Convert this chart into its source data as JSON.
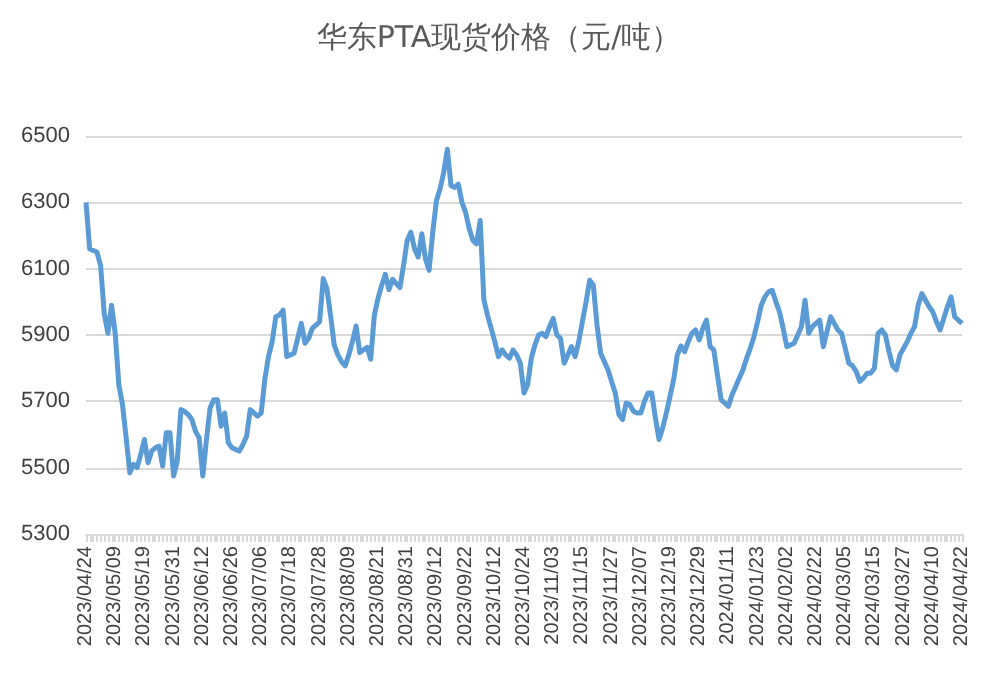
{
  "chart_data": {
    "type": "line",
    "title": "华东PTA现货价格（元/吨）",
    "categories": [
      "2023/04/24",
      null,
      null,
      null,
      null,
      null,
      null,
      null,
      "2023/05/09",
      null,
      null,
      null,
      null,
      null,
      null,
      null,
      "2023/05/19",
      null,
      null,
      null,
      null,
      null,
      null,
      null,
      "2023/05/31",
      null,
      null,
      null,
      null,
      null,
      null,
      null,
      "2023/06/12",
      null,
      null,
      null,
      null,
      null,
      null,
      null,
      "2023/06/26",
      null,
      null,
      null,
      null,
      null,
      null,
      null,
      "2023/07/06",
      null,
      null,
      null,
      null,
      null,
      null,
      null,
      "2023/07/18",
      null,
      null,
      null,
      null,
      null,
      null,
      null,
      "2023/07/28",
      null,
      null,
      null,
      null,
      null,
      null,
      null,
      "2023/08/09",
      null,
      null,
      null,
      null,
      null,
      null,
      null,
      "2023/08/21",
      null,
      null,
      null,
      null,
      null,
      null,
      null,
      "2023/08/31",
      null,
      null,
      null,
      null,
      null,
      null,
      null,
      "2023/09/12",
      null,
      null,
      null,
      null,
      null,
      null,
      null,
      "2023/09/22",
      null,
      null,
      null,
      null,
      null,
      null,
      null,
      "2023/10/12",
      null,
      null,
      null,
      null,
      null,
      null,
      null,
      "2023/10/24",
      null,
      null,
      null,
      null,
      null,
      null,
      null,
      "2023/11/03",
      null,
      null,
      null,
      null,
      null,
      null,
      null,
      "2023/11/15",
      null,
      null,
      null,
      null,
      null,
      null,
      null,
      "2023/11/27",
      null,
      null,
      null,
      null,
      null,
      null,
      null,
      "2023/12/07",
      null,
      null,
      null,
      null,
      null,
      null,
      null,
      "2023/12/19",
      null,
      null,
      null,
      null,
      null,
      null,
      null,
      "2023/12/29",
      null,
      null,
      null,
      null,
      null,
      null,
      null,
      "2024/01/11",
      null,
      null,
      null,
      null,
      null,
      null,
      null,
      "2024/01/23",
      null,
      null,
      null,
      null,
      null,
      null,
      null,
      "2024/02/02",
      null,
      null,
      null,
      null,
      null,
      null,
      null,
      "2024/02/22",
      null,
      null,
      null,
      null,
      null,
      null,
      null,
      "2024/03/05",
      null,
      null,
      null,
      null,
      null,
      null,
      null,
      "2024/03/15",
      null,
      null,
      null,
      null,
      null,
      null,
      null,
      "2024/03/27",
      null,
      null,
      null,
      null,
      null,
      null,
      null,
      "2024/04/10",
      null,
      null,
      null,
      null,
      null,
      null,
      null,
      "2024/04/22"
    ],
    "values": [
      6300,
      6160,
      6155,
      6150,
      6110,
      5965,
      5905,
      5990,
      5905,
      5750,
      5690,
      5590,
      5485,
      5510,
      5500,
      5540,
      5585,
      5515,
      5550,
      5560,
      5565,
      5505,
      5605,
      5605,
      5475,
      5520,
      5675,
      5670,
      5660,
      5645,
      5610,
      5590,
      5475,
      5585,
      5680,
      5705,
      5705,
      5625,
      5665,
      5575,
      5560,
      5555,
      5550,
      5570,
      5595,
      5675,
      5665,
      5655,
      5665,
      5767,
      5835,
      5880,
      5955,
      5960,
      5975,
      5835,
      5840,
      5845,
      5890,
      5935,
      5875,
      5890,
      5920,
      5930,
      5940,
      6070,
      6040,
      5960,
      5870,
      5840,
      5820,
      5807,
      5840,
      5880,
      5927,
      5847,
      5855,
      5863,
      5827,
      5960,
      6010,
      6050,
      6083,
      6037,
      6068,
      6055,
      6043,
      6110,
      6185,
      6210,
      6160,
      6135,
      6205,
      6130,
      6095,
      6210,
      6305,
      6340,
      6390,
      6460,
      6350,
      6345,
      6355,
      6300,
      6270,
      6220,
      6185,
      6175,
      6245,
      6007,
      5960,
      5920,
      5880,
      5835,
      5855,
      5840,
      5830,
      5855,
      5840,
      5815,
      5725,
      5750,
      5830,
      5870,
      5900,
      5905,
      5895,
      5925,
      5950,
      5900,
      5890,
      5815,
      5840,
      5865,
      5835,
      5880,
      5940,
      6000,
      6065,
      6050,
      5930,
      5845,
      5820,
      5795,
      5760,
      5725,
      5660,
      5645,
      5695,
      5690,
      5670,
      5665,
      5665,
      5700,
      5725,
      5725,
      5650,
      5585,
      5620,
      5665,
      5715,
      5765,
      5840,
      5867,
      5850,
      5880,
      5905,
      5915,
      5885,
      5920,
      5945,
      5865,
      5855,
      5780,
      5705,
      5695,
      5685,
      5720,
      5745,
      5770,
      5795,
      5830,
      5860,
      5895,
      5940,
      5990,
      6015,
      6030,
      6035,
      6000,
      5970,
      5920,
      5865,
      5870,
      5875,
      5900,
      5925,
      6005,
      5905,
      5925,
      5935,
      5945,
      5865,
      5910,
      5955,
      5935,
      5915,
      5905,
      5860,
      5815,
      5807,
      5790,
      5760,
      5770,
      5785,
      5785,
      5800,
      5905,
      5915,
      5900,
      5850,
      5807,
      5795,
      5840,
      5860,
      5880,
      5905,
      5925,
      5990,
      6025,
      6005,
      5985,
      5970,
      5940,
      5915,
      5950,
      5985,
      6015,
      5955,
      5945,
      5935
    ],
    "color": "#5b9bd5",
    "ylim": [
      5300,
      6500
    ],
    "yticks": [
      5300,
      5500,
      5700,
      5900,
      6100,
      6300,
      6500
    ],
    "grid": "y",
    "marker": "none"
  }
}
